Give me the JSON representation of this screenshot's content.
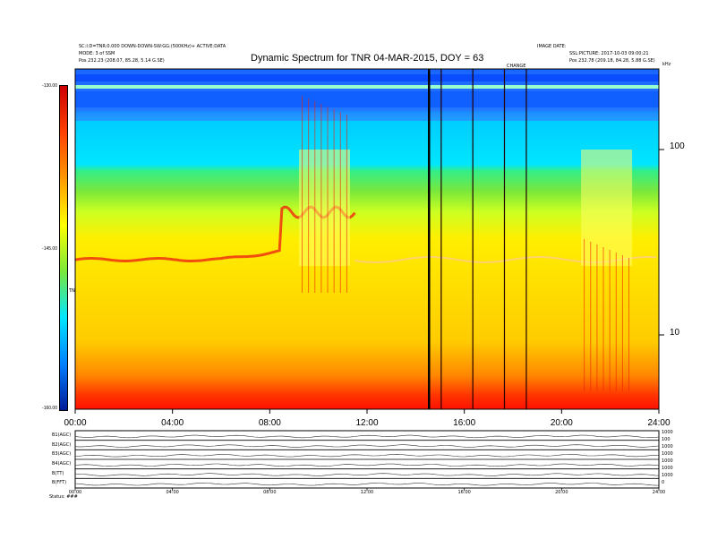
{
  "header": {
    "title": "Dynamic Spectrum for TNR 04-MAR-2015, DOY = 63",
    "left_lines": [
      "SC:I:D=TNR:0.000 DOWN-DOWN-SW:GG:(500KHz)+ ACTIVE:DATA",
      "MODE: 3 of SSM",
      "Pos    232.23 (208.07, 85.28, 5.14 G.SE)"
    ],
    "right_lines": [
      "IMAGE DATE:",
      "SSL:PICTURE: 2017-10-03 09:00:21",
      "Pos    232.78 (209.18, 84.28, 5.88 G.SE)"
    ],
    "center_mark": "CHANGE"
  },
  "colorbar": {
    "labels": [
      "-130.00",
      "-145.00",
      "-160.00"
    ],
    "side_label": "TNR",
    "colors": [
      "#cc0000",
      "#ff4000",
      "#ff9900",
      "#ffff00",
      "#7be83a",
      "#00e6ff",
      "#0080ff",
      "#001a99"
    ]
  },
  "chart_data": {
    "type": "heatmap",
    "title": "Dynamic Spectrum for TNR 04-MAR-2015, DOY = 63",
    "x_ticks": [
      "00:00",
      "04:00",
      "08:00",
      "12:00",
      "16:00",
      "20:00",
      "24:00"
    ],
    "xlim_hours": [
      0,
      24
    ],
    "y_scale": "log",
    "y_ticks": [
      100,
      10
    ],
    "y_unit_label": "kHz",
    "colorbar_range": [
      -160,
      -130
    ],
    "colorbar_ticks": [
      -130,
      -145,
      -160
    ],
    "data_gaps_hours": [
      14.55,
      15.05,
      16.35,
      17.65,
      18.55
    ],
    "bursts": [
      {
        "start_hour": 9.2,
        "end_hour": 11.3,
        "type": "type III emission burst"
      },
      {
        "start_hour": 20.8,
        "end_hour": 22.9,
        "type": "burst group"
      }
    ]
  },
  "subpanels": {
    "left_labels": [
      "B1(AGC)",
      "B2(AGC)",
      "B3(AGC)",
      "B4(AGC)",
      "B(TT)",
      "B(FFT)"
    ],
    "right_labels": [
      "1000",
      "100",
      "1000",
      "1000",
      "1000",
      "1000",
      "1000",
      "0"
    ],
    "x_ticks": [
      "00:00",
      "04:00",
      "08:00",
      "12:00",
      "16:00",
      "20:00",
      "24:00"
    ],
    "status_text": "Status: ### "
  }
}
